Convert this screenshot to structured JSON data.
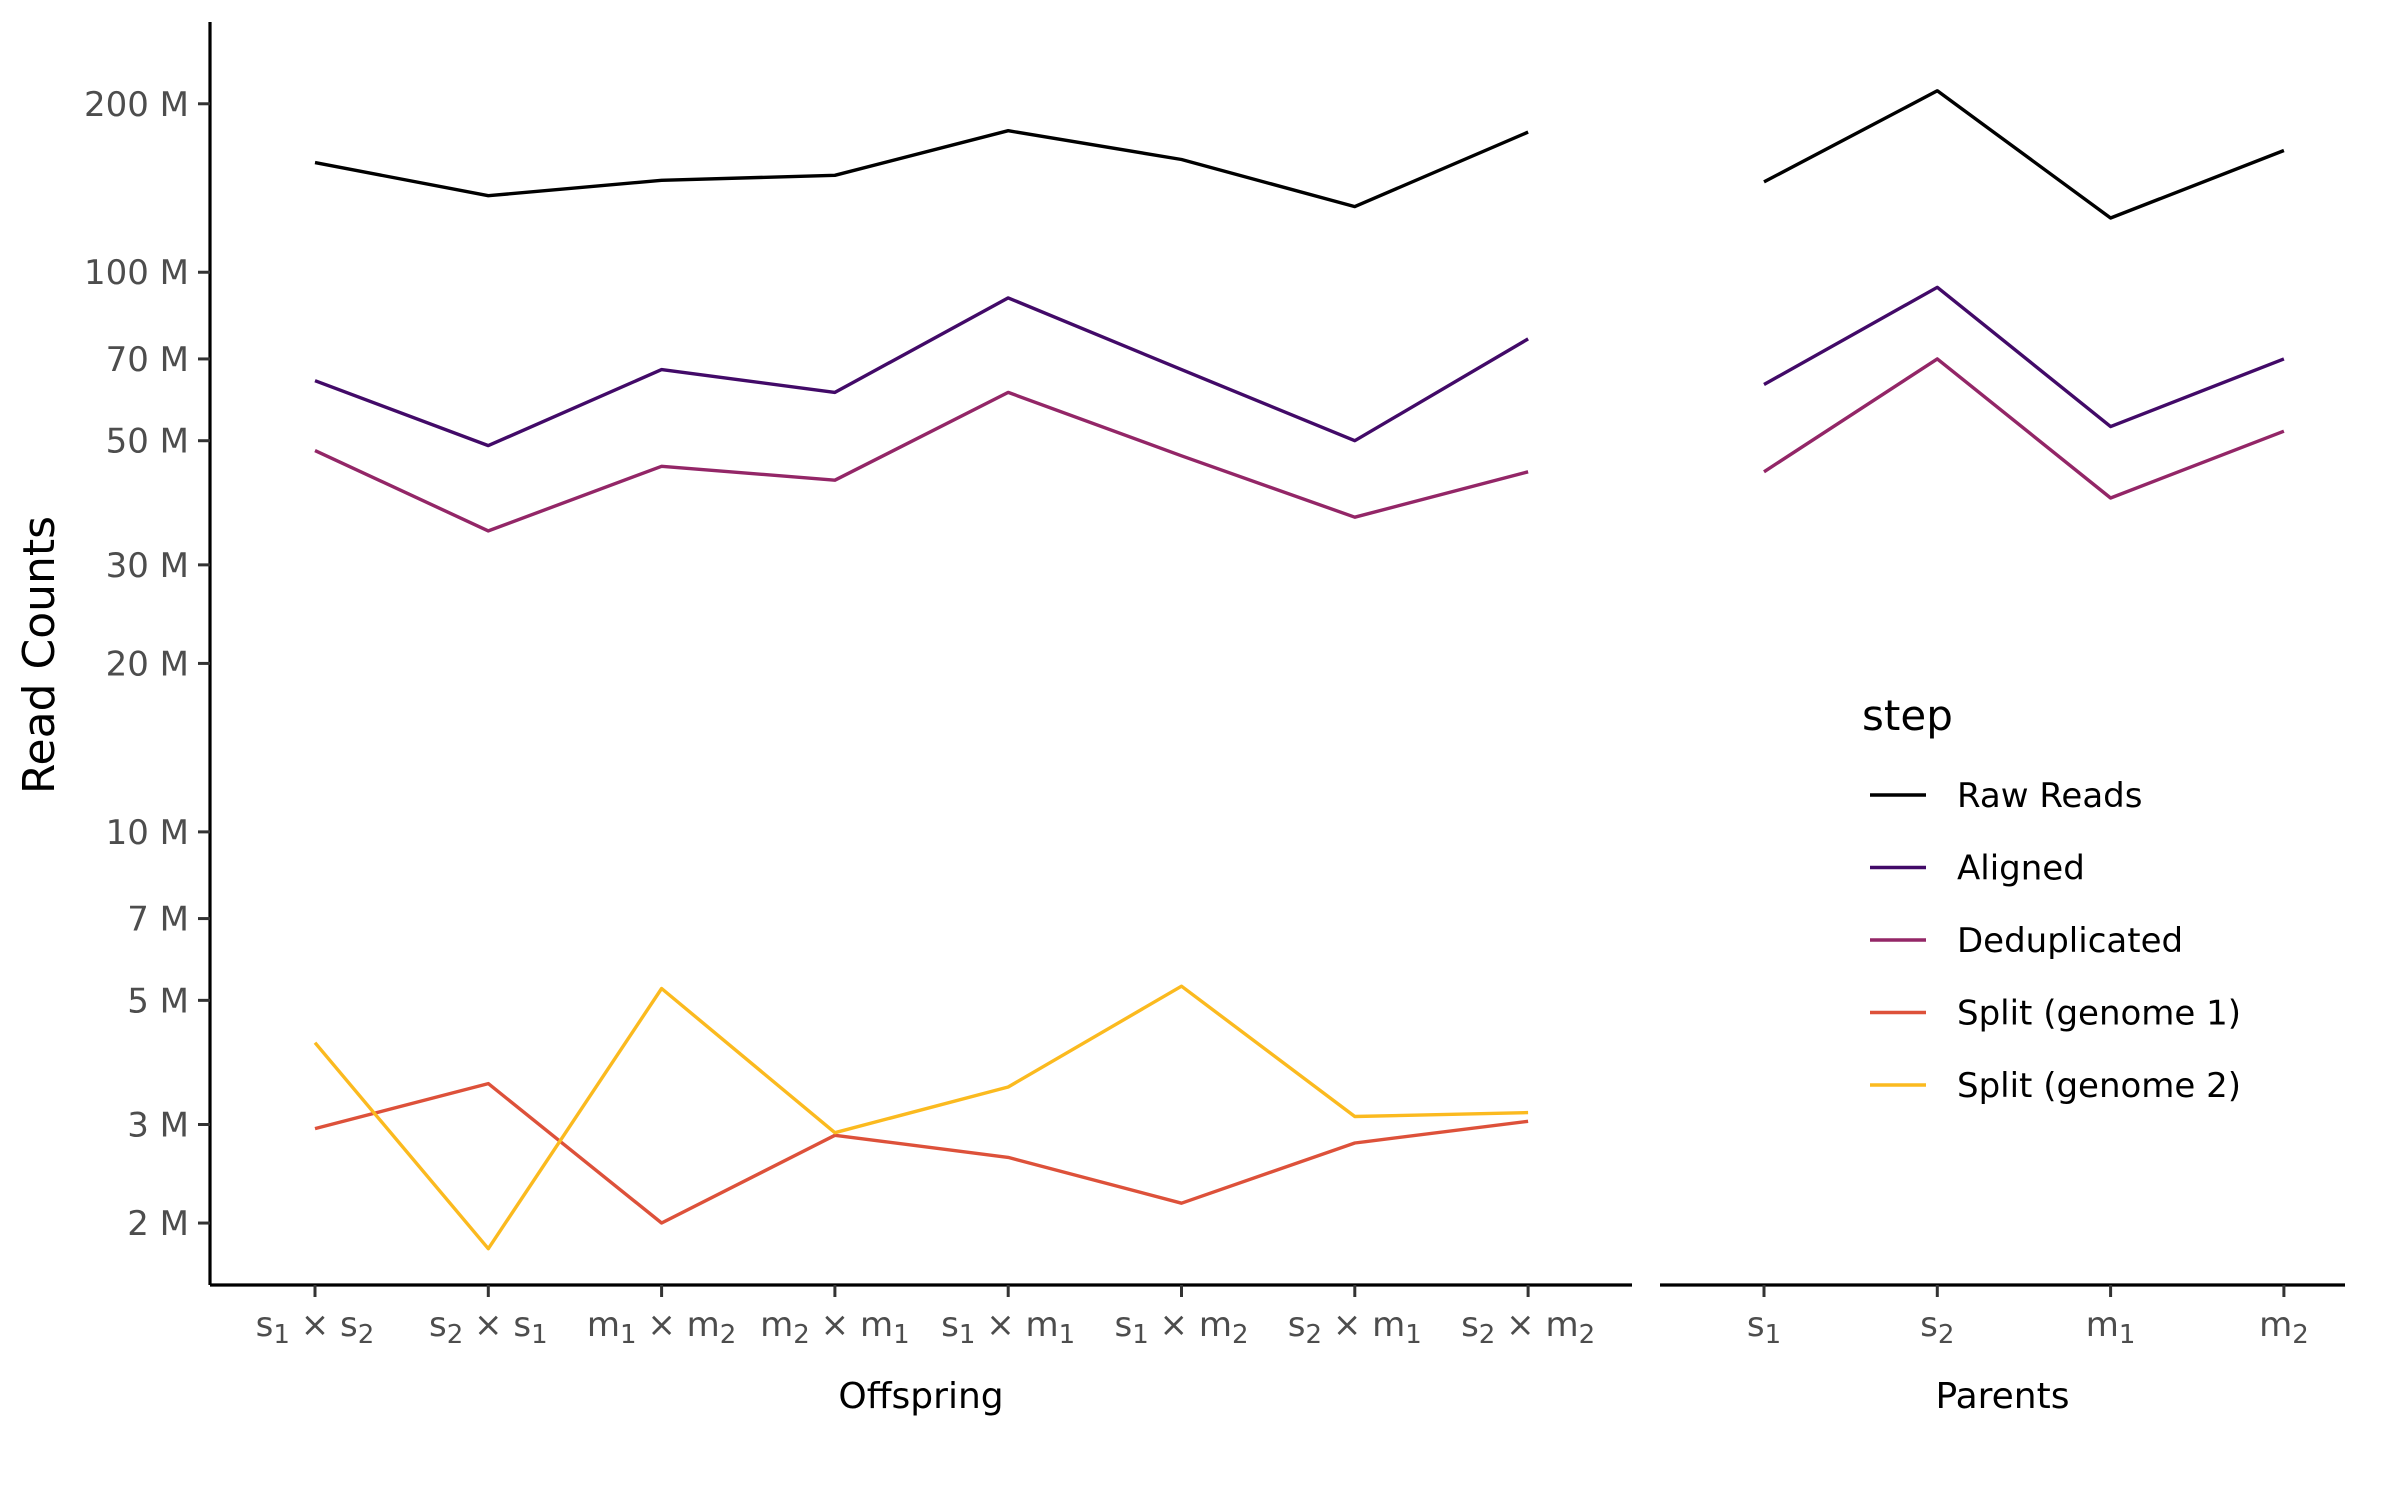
{
  "chart_data": {
    "type": "line",
    "ylabel": "Read Counts",
    "yscale": "log",
    "ylim": [
      1.55,
      280
    ],
    "yticks": [
      {
        "value": 2,
        "label": "2 M"
      },
      {
        "value": 3,
        "label": "3 M"
      },
      {
        "value": 5,
        "label": "5 M"
      },
      {
        "value": 7,
        "label": "7 M"
      },
      {
        "value": 10,
        "label": "10 M"
      },
      {
        "value": 20,
        "label": "20 M"
      },
      {
        "value": 30,
        "label": "30 M"
      },
      {
        "value": 50,
        "label": "50 M"
      },
      {
        "value": 70,
        "label": "70 M"
      },
      {
        "value": 100,
        "label": "100 M"
      },
      {
        "value": 200,
        "label": "200 M"
      }
    ],
    "legend": {
      "title": "step",
      "position": "right",
      "entries": [
        "Raw Reads",
        "Aligned",
        "Deduplicated",
        "Split (genome 1)",
        "Split (genome 2)"
      ]
    },
    "colors": {
      "Raw Reads": "#000000",
      "Aligned": "#420a68",
      "Deduplicated": "#932667",
      "Split (genome 1)": "#dd513a",
      "Split (genome 2)": "#fbba1f"
    },
    "panels": [
      {
        "xlabel": "Offspring",
        "categories": [
          {
            "parts": [
              [
                "s",
                "1"
              ],
              [
                "s",
                "2"
              ]
            ]
          },
          {
            "parts": [
              [
                "s",
                "2"
              ],
              [
                "s",
                "1"
              ]
            ]
          },
          {
            "parts": [
              [
                "m",
                "1"
              ],
              [
                "m",
                "2"
              ]
            ]
          },
          {
            "parts": [
              [
                "m",
                "2"
              ],
              [
                "m",
                "1"
              ]
            ]
          },
          {
            "parts": [
              [
                "s",
                "1"
              ],
              [
                "m",
                "1"
              ]
            ]
          },
          {
            "parts": [
              [
                "s",
                "1"
              ],
              [
                "m",
                "2"
              ]
            ]
          },
          {
            "parts": [
              [
                "s",
                "2"
              ],
              [
                "m",
                "1"
              ]
            ]
          },
          {
            "parts": [
              [
                "s",
                "2"
              ],
              [
                "m",
                "2"
              ]
            ]
          }
        ],
        "series": [
          {
            "name": "Raw Reads",
            "values": [
              157,
              137,
              146,
              149,
              179,
              159,
              131,
              178
            ]
          },
          {
            "name": "Aligned",
            "values": [
              64,
              49,
              67,
              61,
              90,
              67,
              50,
              76
            ]
          },
          {
            "name": "Deduplicated",
            "values": [
              48,
              34.5,
              45,
              42.5,
              61,
              47,
              36.5,
              44
            ]
          },
          {
            "name": "Split (genome 1)",
            "values": [
              2.95,
              3.55,
              2.0,
              2.87,
              2.62,
              2.17,
              2.78,
              3.04
            ]
          },
          {
            "name": "Split (genome 2)",
            "values": [
              4.2,
              1.8,
              5.25,
              2.9,
              3.5,
              5.3,
              3.1,
              3.15
            ]
          }
        ]
      },
      {
        "xlabel": "Parents",
        "categories": [
          {
            "parts": [
              [
                "s",
                "1"
              ]
            ]
          },
          {
            "parts": [
              [
                "s",
                "2"
              ]
            ]
          },
          {
            "parts": [
              [
                "m",
                "1"
              ]
            ]
          },
          {
            "parts": [
              [
                "m",
                "2"
              ]
            ]
          }
        ],
        "series": [
          {
            "name": "Raw Reads",
            "values": [
              145,
              211,
              125,
              165
            ]
          },
          {
            "name": "Aligned",
            "values": [
              63,
              94,
              53,
              70
            ]
          },
          {
            "name": "Deduplicated",
            "values": [
              44,
              70,
              39.5,
              52
            ]
          },
          {
            "name": "Split (genome 1)",
            "values": []
          },
          {
            "name": "Split (genome 2)",
            "values": []
          }
        ]
      }
    ]
  }
}
